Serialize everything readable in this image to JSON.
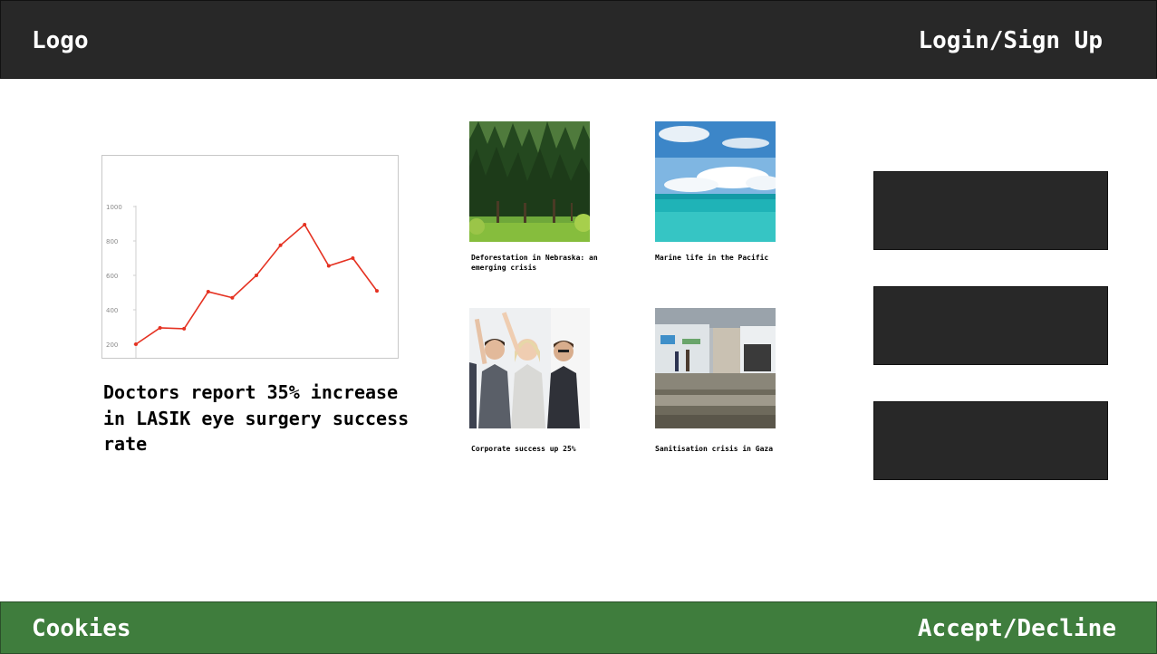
{
  "header": {
    "logo": "Logo",
    "login_label": "Login/Sign Up"
  },
  "featured": {
    "headline": "Doctors report 35% increase in LASIK eye surgery success rate"
  },
  "chart_data": {
    "type": "line",
    "x": [
      1,
      2,
      3,
      4,
      5,
      6,
      7,
      8,
      9,
      10,
      11
    ],
    "series": [
      {
        "values": [
          200,
          295,
          290,
          505,
          470,
          600,
          775,
          895,
          655,
          700,
          510
        ]
      }
    ],
    "yticks": [
      "1000",
      "800",
      "600",
      "400",
      "200"
    ],
    "ylim": [
      200,
      1000
    ],
    "line_color": "#e53222",
    "grid": false
  },
  "articles": [
    {
      "caption": "Deforestation in Nebraska: an emerging crisis",
      "image": "forest-photo"
    },
    {
      "caption": "Marine life in the Pacific",
      "image": "ocean-photo"
    },
    {
      "caption": "Corporate success up 25%",
      "image": "celebrating-team-photo"
    },
    {
      "caption": "Sanitisation crisis in Gaza",
      "image": "refugee-camp-photo"
    }
  ],
  "cookie_banner": {
    "label": "Cookies",
    "action_label": "Accept/Decline"
  },
  "colors": {
    "header_bg": "#282828",
    "cookie_bg": "#3f7d3d",
    "side_block": "#282828"
  }
}
